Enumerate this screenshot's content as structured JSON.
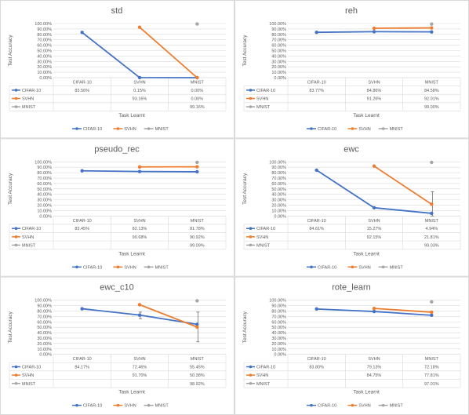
{
  "colors": {
    "cifar": "#4472C4",
    "svhn": "#ED7D31",
    "mnist": "#A5A5A5",
    "grid": "#D9D9D9",
    "text": "#595959",
    "title": "#595959"
  },
  "xlabel": "Task Learnt",
  "ylabel": "Test Accuracy",
  "series_names": [
    "CIFAR-10",
    "SVHN",
    "MNIST"
  ],
  "categories": [
    "CIFAR-10",
    "SVHN",
    "MNIST"
  ],
  "y_ticks": [
    "0.00%",
    "10.00%",
    "20.00%",
    "30.00%",
    "40.00%",
    "50.00%",
    "60.00%",
    "70.00%",
    "80.00%",
    "90.00%",
    "100.00%"
  ],
  "chart_data": [
    {
      "type": "line",
      "title": "std",
      "categories": [
        "CIFAR-10",
        "SVHN",
        "MNIST"
      ],
      "ylim": [
        0,
        100
      ],
      "legend_position": "bottom",
      "grid": true,
      "series": [
        {
          "name": "CIFAR-10",
          "values": [
            83.56,
            0.15,
            0.0
          ],
          "labels": [
            "83.56%",
            "0.15%",
            "0.00%"
          ]
        },
        {
          "name": "SVHN",
          "values": [
            null,
            93.16,
            0.0
          ],
          "labels": [
            "",
            "93.16%",
            "0.00%"
          ]
        },
        {
          "name": "MNIST",
          "values": [
            null,
            null,
            99.16
          ],
          "labels": [
            "",
            "",
            "99.16%"
          ]
        }
      ],
      "error_bars": []
    },
    {
      "type": "line",
      "title": "reh",
      "categories": [
        "CIFAR-10",
        "SVHN",
        "MNIST"
      ],
      "ylim": [
        0,
        100
      ],
      "legend_position": "bottom",
      "grid": true,
      "series": [
        {
          "name": "CIFAR-10",
          "values": [
            83.77,
            84.86,
            84.58
          ],
          "labels": [
            "83.77%",
            "84.86%",
            "84.58%"
          ]
        },
        {
          "name": "SVHN",
          "values": [
            null,
            91.26,
            92.01
          ],
          "labels": [
            "",
            "91.26%",
            "92.01%"
          ]
        },
        {
          "name": "MNIST",
          "values": [
            null,
            null,
            99.0
          ],
          "labels": [
            "",
            "",
            "99.00%"
          ]
        }
      ],
      "error_bars": []
    },
    {
      "type": "line",
      "title": "pseudo_rec",
      "categories": [
        "CIFAR-10",
        "SVHN",
        "MNIST"
      ],
      "ylim": [
        0,
        100
      ],
      "legend_position": "bottom",
      "grid": true,
      "series": [
        {
          "name": "CIFAR-10",
          "values": [
            83.45,
            82.13,
            81.78
          ],
          "labels": [
            "83.45%",
            "82.13%",
            "81.78%"
          ]
        },
        {
          "name": "SVHN",
          "values": [
            null,
            90.68,
            90.92
          ],
          "labels": [
            "",
            "90.68%",
            "90.92%"
          ]
        },
        {
          "name": "MNIST",
          "values": [
            null,
            null,
            99.09
          ],
          "labels": [
            "",
            "",
            "99.09%"
          ]
        }
      ],
      "error_bars": []
    },
    {
      "type": "line",
      "title": "ewc",
      "categories": [
        "CIFAR-10",
        "SVHN",
        "MNIST"
      ],
      "ylim": [
        0,
        100
      ],
      "legend_position": "bottom",
      "grid": true,
      "series": [
        {
          "name": "CIFAR-10",
          "values": [
            84.61,
            15.27,
            4.94
          ],
          "labels": [
            "84.61%",
            "15.27%",
            "4.94%"
          ]
        },
        {
          "name": "SVHN",
          "values": [
            null,
            92.15,
            21.81
          ],
          "labels": [
            "",
            "92.15%",
            "21.81%"
          ]
        },
        {
          "name": "MNIST",
          "values": [
            null,
            null,
            99.03
          ],
          "labels": [
            "",
            "",
            "99.03%"
          ]
        }
      ],
      "error_bars": [
        {
          "category_index": 2,
          "low": 0,
          "high": 45
        }
      ]
    },
    {
      "type": "line",
      "title": "ewc_c10",
      "categories": [
        "CIFAR-10",
        "SVHN",
        "MNIST"
      ],
      "ylim": [
        0,
        100
      ],
      "legend_position": "bottom",
      "grid": true,
      "series": [
        {
          "name": "CIFAR-10",
          "values": [
            84.17,
            72.46,
            55.45
          ],
          "labels": [
            "84.17%",
            "72.46%",
            "55.45%"
          ]
        },
        {
          "name": "SVHN",
          "values": [
            null,
            91.7,
            50.38
          ],
          "labels": [
            "",
            "91.70%",
            "50.38%"
          ]
        },
        {
          "name": "MNIST",
          "values": [
            null,
            null,
            98.92
          ],
          "labels": [
            "",
            "",
            "98.92%"
          ]
        }
      ],
      "error_bars": [
        {
          "category_index": 1,
          "low": 66,
          "high": 78
        },
        {
          "category_index": 2,
          "low": 23,
          "high": 78
        }
      ]
    },
    {
      "type": "line",
      "title": "rote_learn",
      "categories": [
        "CIFAR-10",
        "SVHN",
        "MNIST"
      ],
      "ylim": [
        0,
        100
      ],
      "legend_position": "bottom",
      "grid": true,
      "series": [
        {
          "name": "CIFAR-10",
          "values": [
            83.8,
            79.13,
            72.18
          ],
          "labels": [
            "83.80%",
            "79.13%",
            "72.18%"
          ]
        },
        {
          "name": "SVHN",
          "values": [
            null,
            84.75,
            77.81
          ],
          "labels": [
            "",
            "84.75%",
            "77.81%"
          ]
        },
        {
          "name": "MNIST",
          "values": [
            null,
            null,
            97.01
          ],
          "labels": [
            "",
            "",
            "97.01%"
          ]
        }
      ],
      "error_bars": []
    }
  ]
}
